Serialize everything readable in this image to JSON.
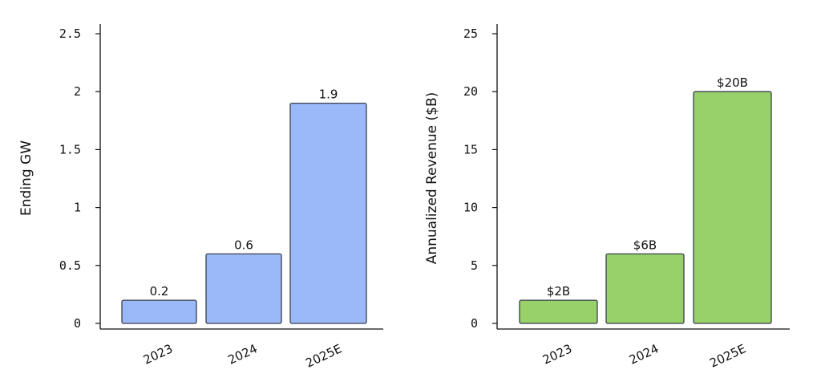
{
  "chart_data": [
    {
      "type": "bar",
      "categories": [
        "2023",
        "2024",
        "2025E"
      ],
      "values": [
        0.2,
        0.6,
        1.9
      ],
      "data_labels": [
        "0.2",
        "0.6",
        "1.9"
      ],
      "ylabel": "Ending GW",
      "ylim": [
        0,
        2.5
      ],
      "yticks": [
        0,
        0.5,
        1,
        1.5,
        2,
        2.5
      ],
      "ytick_labels": [
        "0",
        "0.5",
        "1",
        "1.5",
        "2",
        "2.5"
      ],
      "color": "#9bb8f8",
      "grid": false
    },
    {
      "type": "bar",
      "categories": [
        "2023",
        "2024",
        "2025E"
      ],
      "values": [
        2,
        6,
        20
      ],
      "data_labels": [
        "$2B",
        "$6B",
        "$20B"
      ],
      "ylabel": "Annualized Revenue ($B)",
      "ylim": [
        0,
        25
      ],
      "yticks": [
        0,
        5,
        10,
        15,
        20,
        25
      ],
      "ytick_labels": [
        "0",
        "5",
        "10",
        "15",
        "20",
        "25"
      ],
      "color": "#98d06a",
      "grid": false
    }
  ]
}
